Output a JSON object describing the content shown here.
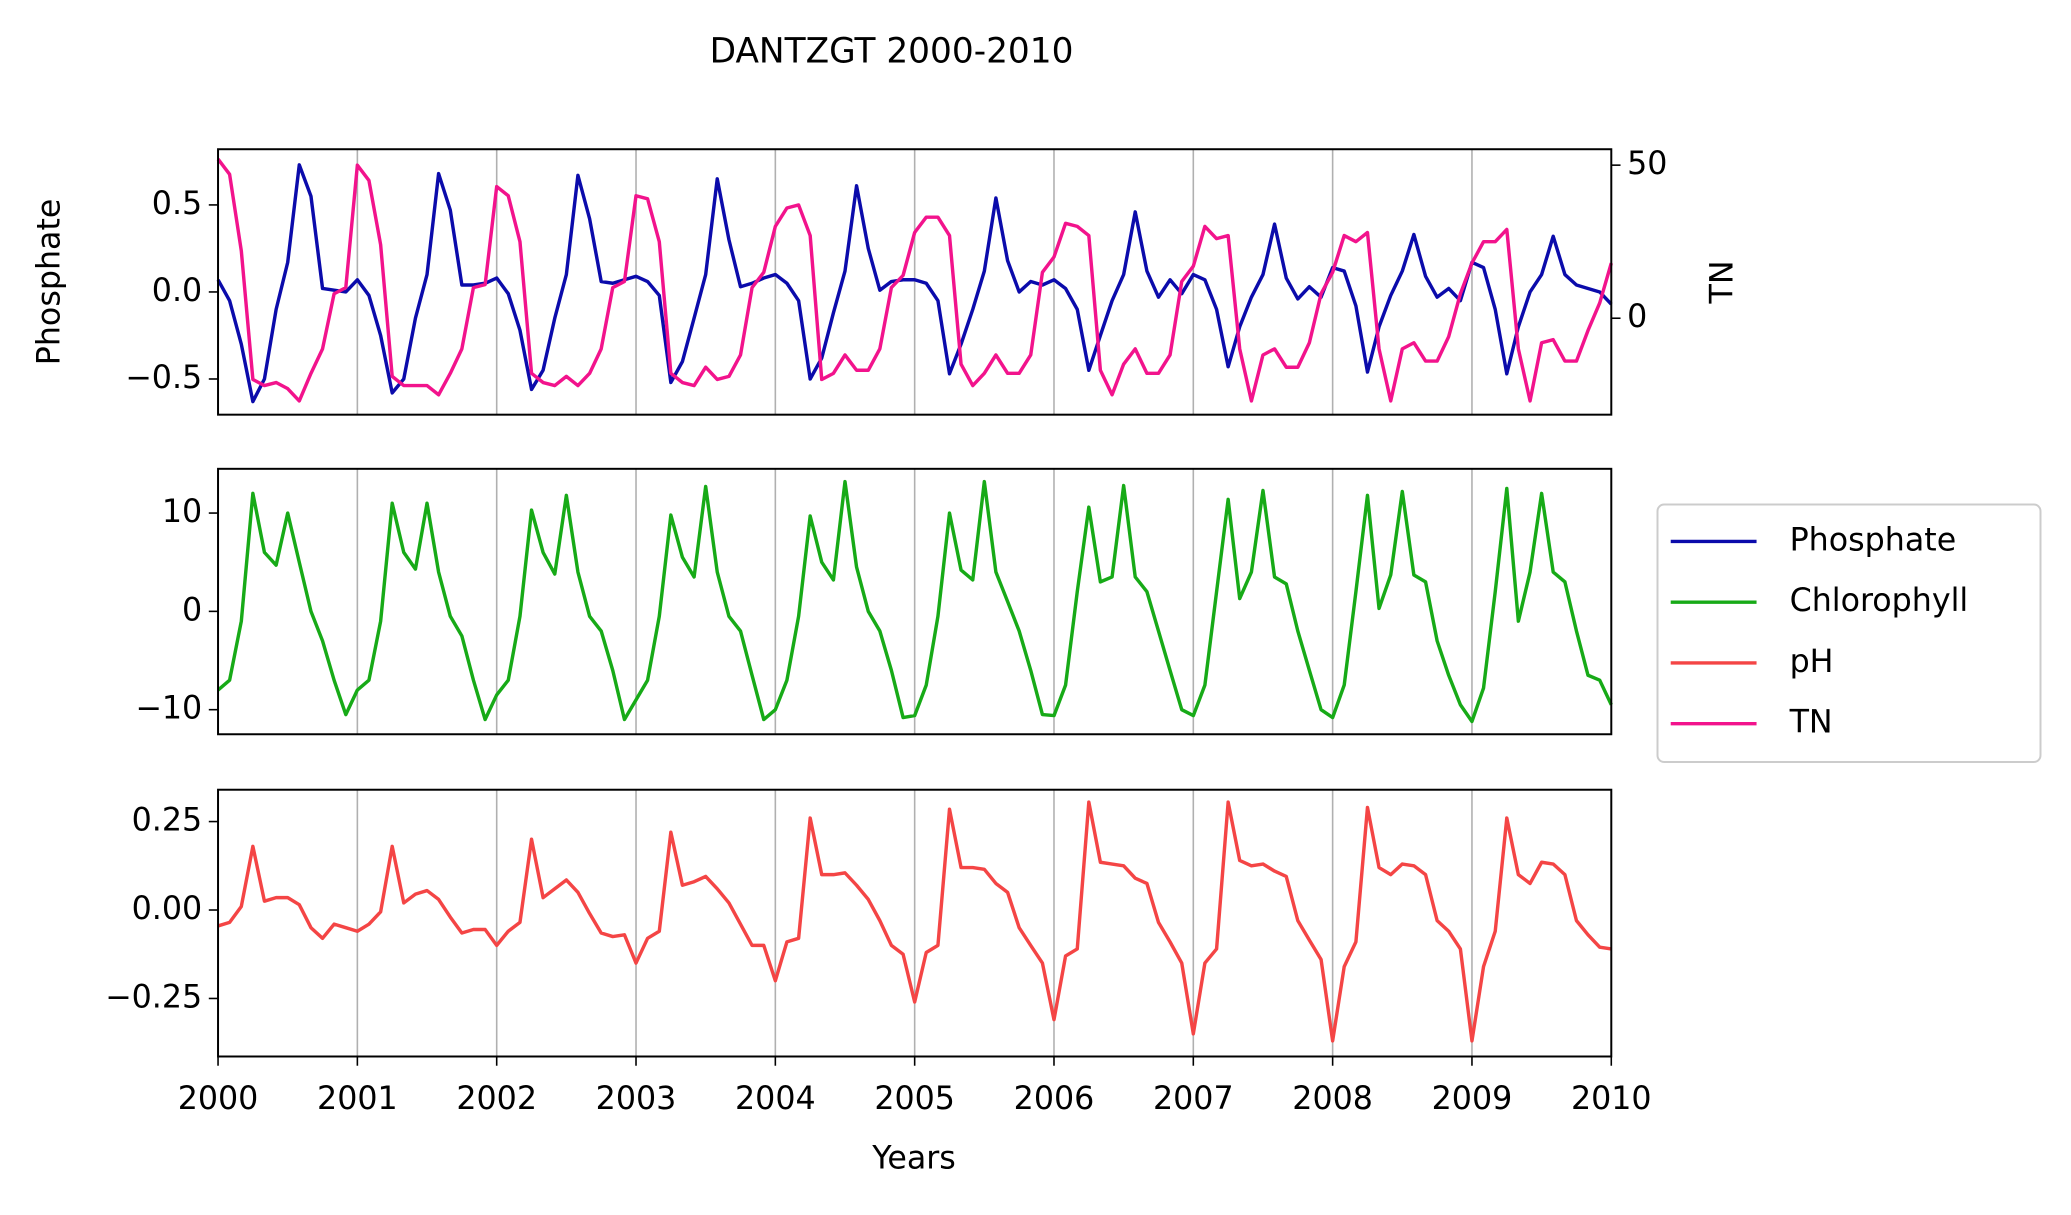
{
  "chart_data": {
    "type": "line",
    "title": "DANTZGT 2000-2010",
    "xlabel": "Years",
    "legend": "right",
    "grid": "x",
    "xlim": [
      2000,
      2010
    ],
    "xticks": [
      2000,
      2001,
      2002,
      2003,
      2004,
      2005,
      2006,
      2007,
      2008,
      2009,
      2010
    ],
    "x": [
      2000,
      2000.083,
      2000.167,
      2000.25,
      2000.333,
      2000.417,
      2000.5,
      2000.583,
      2000.667,
      2000.75,
      2000.833,
      2000.917,
      2001,
      2001.083,
      2001.167,
      2001.25,
      2001.333,
      2001.417,
      2001.5,
      2001.583,
      2001.667,
      2001.75,
      2001.833,
      2001.917,
      2002,
      2002.083,
      2002.167,
      2002.25,
      2002.333,
      2002.417,
      2002.5,
      2002.583,
      2002.667,
      2002.75,
      2002.833,
      2002.917,
      2003,
      2003.083,
      2003.167,
      2003.25,
      2003.333,
      2003.417,
      2003.5,
      2003.583,
      2003.667,
      2003.75,
      2003.833,
      2003.917,
      2004,
      2004.083,
      2004.167,
      2004.25,
      2004.333,
      2004.417,
      2004.5,
      2004.583,
      2004.667,
      2004.75,
      2004.833,
      2004.917,
      2005,
      2005.083,
      2005.167,
      2005.25,
      2005.333,
      2005.417,
      2005.5,
      2005.583,
      2005.667,
      2005.75,
      2005.833,
      2005.917,
      2006,
      2006.083,
      2006.167,
      2006.25,
      2006.333,
      2006.417,
      2006.5,
      2006.583,
      2006.667,
      2006.75,
      2006.833,
      2006.917,
      2007,
      2007.083,
      2007.167,
      2007.25,
      2007.333,
      2007.417,
      2007.5,
      2007.583,
      2007.667,
      2007.75,
      2007.833,
      2007.917,
      2008,
      2008.083,
      2008.167,
      2008.25,
      2008.333,
      2008.417,
      2008.5,
      2008.583,
      2008.667,
      2008.75,
      2008.833,
      2008.917,
      2009,
      2009.083,
      2009.167,
      2009.25,
      2009.333,
      2009.417,
      2009.5,
      2009.583,
      2009.667,
      2009.75,
      2009.833,
      2009.917,
      2010
    ],
    "panels": [
      {
        "ylabel": "Phosphate",
        "ylim": [
          -0.705,
          0.82
        ],
        "yticks": [
          {
            "value": -0.5,
            "label": "−0.5"
          },
          {
            "value": 0,
            "label": "0.0"
          },
          0.5
        ],
        "y2label": "TN",
        "y2lim": [
          -31.5,
          55.2
        ],
        "y2ticks": [
          0,
          50
        ],
        "series": [
          {
            "name": "Phosphate",
            "color": "#0b0bab",
            "values": [
              0.07,
              -0.05,
              -0.3,
              -0.63,
              -0.5,
              -0.1,
              0.17,
              0.73,
              0.55,
              0.02,
              0.01,
              0.0,
              0.07,
              -0.02,
              -0.25,
              -0.58,
              -0.5,
              -0.15,
              0.1,
              0.68,
              0.47,
              0.04,
              0.04,
              0.05,
              0.08,
              -0.01,
              -0.22,
              -0.56,
              -0.45,
              -0.15,
              0.1,
              0.67,
              0.42,
              0.06,
              0.05,
              0.07,
              0.09,
              0.06,
              -0.02,
              -0.52,
              -0.4,
              -0.15,
              0.1,
              0.65,
              0.3,
              0.03,
              0.05,
              0.08,
              0.1,
              0.05,
              -0.05,
              -0.5,
              -0.38,
              -0.12,
              0.12,
              0.61,
              0.25,
              0.01,
              0.06,
              0.07,
              0.07,
              0.05,
              -0.05,
              -0.47,
              -0.3,
              -0.1,
              0.12,
              0.54,
              0.18,
              0.0,
              0.06,
              0.04,
              0.07,
              0.02,
              -0.1,
              -0.45,
              -0.25,
              -0.05,
              0.1,
              0.46,
              0.12,
              -0.03,
              0.07,
              -0.01,
              0.1,
              0.07,
              -0.1,
              -0.43,
              -0.2,
              -0.03,
              0.1,
              0.39,
              0.08,
              -0.04,
              0.03,
              -0.03,
              0.14,
              0.12,
              -0.08,
              -0.46,
              -0.2,
              -0.02,
              0.12,
              0.33,
              0.09,
              -0.03,
              0.02,
              -0.05,
              0.17,
              0.14,
              -0.1,
              -0.47,
              -0.2,
              0.0,
              0.1,
              0.32,
              0.1,
              0.04,
              0.02,
              0.0,
              -0.07
            ]
          },
          {
            "name": "TN",
            "color": "#f2138c",
            "axis": "y2",
            "values": [
              52,
              47,
              22,
              -20,
              -22,
              -21,
              -23,
              -27,
              -18,
              -10,
              8,
              10,
              50,
              45,
              24,
              -19,
              -22,
              -22,
              -22,
              -25,
              -18,
              -10,
              10,
              11,
              43,
              40,
              25,
              -18,
              -21,
              -22,
              -19,
              -22,
              -18,
              -10,
              10,
              12,
              40,
              39,
              25,
              -18,
              -21,
              -22,
              -16,
              -20,
              -19,
              -12,
              10,
              15,
              30,
              36,
              37,
              27,
              -20,
              -18,
              -12,
              -17,
              -17,
              -10,
              10,
              14,
              28,
              33,
              33,
              27,
              -15,
              -22,
              -18,
              -12,
              -18,
              -18,
              -12,
              15,
              20,
              31,
              30,
              27,
              -17,
              -25,
              -15,
              -10,
              -18,
              -18,
              -12,
              12,
              17,
              30,
              26,
              27,
              -10,
              -27,
              -12,
              -10,
              -16,
              -16,
              -8,
              8,
              15,
              27,
              25,
              28,
              -10,
              -27,
              -10,
              -8,
              -14,
              -14,
              -6,
              8,
              18,
              25,
              25,
              29,
              -10,
              -27,
              -8,
              -7,
              -14,
              -14,
              -4,
              5,
              18
            ]
          }
        ]
      },
      {
        "ylim": [
          -12.5,
          14.5
        ],
        "yticks": [
          {
            "value": -10,
            "label": "−10"
          },
          0,
          10
        ],
        "series": [
          {
            "name": "Chlorophyll",
            "color": "#17aa17",
            "values": [
              -8,
              -7,
              -1,
              12,
              6,
              4.7,
              10,
              5,
              0,
              -3,
              -7,
              -10.5,
              -8,
              -7,
              -1,
              11,
              6,
              4.3,
              11,
              4,
              -0.5,
              -2.5,
              -7,
              -11,
              -8.5,
              -7,
              -0.5,
              10.3,
              6,
              3.8,
              11.8,
              4,
              -0.5,
              -2,
              -6,
              -11,
              -9,
              -7,
              -0.5,
              9.8,
              5.5,
              3.5,
              12.7,
              4,
              -0.5,
              -2,
              -6.5,
              -11,
              -10,
              -7,
              -0.5,
              9.7,
              5,
              3.2,
              13.2,
              4.5,
              0,
              -2,
              -6,
              -10.8,
              -10.6,
              -7.5,
              -0.5,
              10,
              4.2,
              3.2,
              13.2,
              4,
              1,
              -2,
              -6,
              -10.5,
              -10.6,
              -7.5,
              2,
              10.6,
              3,
              3.5,
              12.8,
              3.5,
              2,
              -2,
              -6,
              -10,
              -10.6,
              -7.5,
              2,
              11.4,
              1.3,
              4,
              12.3,
              3.5,
              2.8,
              -2,
              -6,
              -10,
              -10.8,
              -7.5,
              2,
              11.8,
              0.3,
              3.7,
              12.2,
              3.7,
              3,
              -3,
              -6.5,
              -9.5,
              -11.2,
              -7.8,
              2,
              12.5,
              -1,
              4,
              12,
              4,
              3,
              -2,
              -6.5,
              -7,
              -9.5
            ]
          }
        ]
      },
      {
        "ylim": [
          -0.414,
          0.34
        ],
        "yticks": [
          {
            "value": -0.25,
            "label": "−0.25"
          },
          {
            "value": 0,
            "label": "0.00"
          },
          0.25
        ],
        "series": [
          {
            "name": "pH",
            "color": "#f44545",
            "values": [
              -0.045,
              -0.035,
              0.01,
              0.18,
              0.025,
              0.035,
              0.035,
              0.015,
              -0.05,
              -0.08,
              -0.04,
              -0.05,
              -0.06,
              -0.04,
              -0.005,
              0.18,
              0.02,
              0.045,
              0.055,
              0.03,
              -0.02,
              -0.065,
              -0.055,
              -0.055,
              -0.1,
              -0.06,
              -0.035,
              0.2,
              0.035,
              0.06,
              0.085,
              0.05,
              -0.01,
              -0.065,
              -0.075,
              -0.07,
              -0.15,
              -0.08,
              -0.06,
              0.22,
              0.07,
              0.08,
              0.095,
              0.06,
              0.02,
              -0.04,
              -0.1,
              -0.1,
              -0.2,
              -0.09,
              -0.08,
              0.26,
              0.1,
              0.1,
              0.105,
              0.07,
              0.03,
              -0.03,
              -0.1,
              -0.125,
              -0.26,
              -0.12,
              -0.1,
              0.285,
              0.12,
              0.12,
              0.115,
              0.075,
              0.05,
              -0.05,
              -0.1,
              -0.15,
              -0.31,
              -0.13,
              -0.11,
              0.305,
              0.135,
              0.13,
              0.125,
              0.09,
              0.075,
              -0.035,
              -0.09,
              -0.15,
              -0.35,
              -0.15,
              -0.11,
              0.305,
              0.14,
              0.125,
              0.13,
              0.11,
              0.095,
              -0.03,
              -0.085,
              -0.14,
              -0.37,
              -0.16,
              -0.09,
              0.29,
              0.12,
              0.1,
              0.13,
              0.125,
              0.1,
              -0.03,
              -0.06,
              -0.11,
              -0.37,
              -0.16,
              -0.06,
              0.26,
              0.1,
              0.075,
              0.135,
              0.13,
              0.1,
              -0.03,
              -0.07,
              -0.105,
              -0.11
            ]
          }
        ]
      }
    ]
  }
}
